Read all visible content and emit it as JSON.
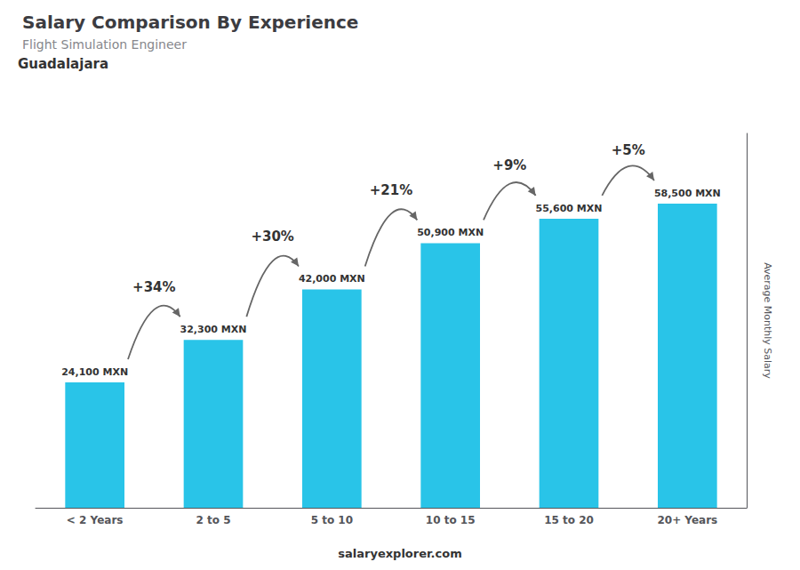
{
  "chart_data": {
    "type": "bar",
    "title": "Salary Comparison By Experience",
    "subtitle": "Flight Simulation Engineer",
    "annotations": [
      "Guadalajara",
      "salaryexplorer.com",
      {
        "text": "+34%",
        "from": "< 2 Years",
        "to": "2 to 5"
      },
      {
        "text": "+30%",
        "from": "2 to 5",
        "to": "5 to 10"
      },
      {
        "text": "+21%",
        "from": "5 to 10",
        "to": "10 to 15"
      },
      {
        "text": "+9%",
        "from": "10 to 15",
        "to": "15 to 20"
      },
      {
        "text": "+5%",
        "from": "15 to 20",
        "to": "20+ Years"
      }
    ],
    "y_label": "Average Monthly Salary",
    "categories": [
      "< 2 Years",
      "2 to 5",
      "5 to 10",
      "10 to 15",
      "15 to 20",
      "20+ Years"
    ],
    "values": [
      24100,
      32300,
      42000,
      50900,
      55600,
      58500
    ],
    "value_labels": [
      "24,100 MXN",
      "32,300 MXN",
      "42,000 MXN",
      "50,900 MXN",
      "55,600 MXN",
      "58,500 MXN"
    ],
    "data_labels": true,
    "color": "#29C4E8",
    "ylim": [
      0,
      72000
    ],
    "grid": false,
    "tick_labels": "x"
  }
}
